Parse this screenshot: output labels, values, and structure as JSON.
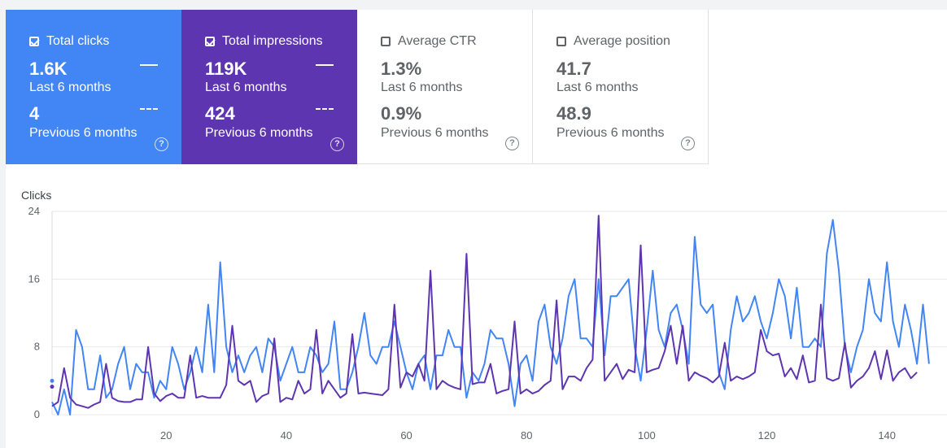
{
  "cards": [
    {
      "label": "Total clicks",
      "checked": true,
      "current": "1.6K",
      "current_period": "Last 6 months",
      "previous": "4",
      "previous_period": "Previous 6 months",
      "color": "#4285f4"
    },
    {
      "label": "Total impressions",
      "checked": true,
      "current": "119K",
      "current_period": "Last 6 months",
      "previous": "424",
      "previous_period": "Previous 6 months",
      "color": "#5e35b1"
    },
    {
      "label": "Average CTR",
      "checked": false,
      "current": "1.3%",
      "current_period": "Last 6 months",
      "previous": "0.9%",
      "previous_period": "Previous 6 months"
    },
    {
      "label": "Average position",
      "checked": false,
      "current": "41.7",
      "current_period": "Last 6 months",
      "previous": "48.9",
      "previous_period": "Previous 6 months"
    }
  ],
  "help_glyph": "?",
  "chart_data": {
    "type": "line",
    "ylabel": "Clicks",
    "ylim": [
      0,
      24
    ],
    "yticks": [
      "0",
      "8",
      "16",
      "24"
    ],
    "xticks": [
      20,
      40,
      60,
      80,
      100,
      120,
      140
    ],
    "xlim": [
      1,
      150
    ],
    "grid": true,
    "series": [
      {
        "color": "#4285f4",
        "values": [
          1.5,
          0,
          3,
          0,
          10,
          8,
          3,
          3,
          7,
          2,
          3,
          6,
          8,
          3,
          6,
          5,
          5,
          2,
          4,
          3,
          8,
          6,
          3,
          5,
          8,
          5,
          13,
          5,
          18,
          8,
          5,
          7,
          5,
          7,
          8,
          5,
          9,
          8,
          4,
          6,
          8,
          5,
          5,
          8,
          7,
          5,
          6,
          11,
          3,
          3,
          5,
          8,
          12,
          7,
          6,
          8,
          8,
          11,
          8,
          5,
          3,
          6,
          7,
          3,
          7,
          7,
          10,
          8,
          8,
          2,
          5,
          4,
          6,
          10,
          9,
          9,
          6,
          1,
          6,
          7,
          4,
          11,
          13,
          8,
          6,
          9,
          14,
          16,
          9,
          9,
          8,
          16,
          7,
          14,
          14,
          15,
          16,
          8,
          4,
          10,
          17,
          10,
          8,
          12,
          13,
          10,
          6,
          21,
          13,
          12,
          13,
          5,
          3,
          10,
          14,
          11,
          12,
          14,
          11,
          9,
          12,
          16,
          14,
          9,
          15,
          8,
          8,
          9,
          8,
          19,
          23,
          17,
          8,
          5,
          8,
          10,
          16,
          12,
          11,
          18,
          11,
          8,
          13,
          10,
          6,
          13,
          6
        ]
      },
      {
        "color": "#5e35b1",
        "values": [
          1,
          1.5,
          5.5,
          2,
          1.2,
          1,
          0.8,
          1.2,
          1.5,
          6,
          2,
          1.6,
          1.5,
          1.5,
          1.8,
          1.8,
          8,
          2.5,
          1.6,
          2.2,
          2.5,
          2,
          2,
          7,
          2,
          2.2,
          2,
          2,
          2,
          3.5,
          10.5,
          4,
          3.5,
          4,
          1.5,
          2.2,
          2.5,
          9,
          1.5,
          2,
          1.8,
          4,
          2.5,
          3,
          10,
          2.5,
          4,
          3,
          2,
          2.5,
          9.5,
          2.5,
          2.6,
          2.5,
          2.4,
          2.3,
          3,
          13,
          3.2,
          5,
          4.5,
          6,
          4,
          17,
          3,
          4,
          3.5,
          3.2,
          3,
          19,
          3.6,
          3.8,
          3.8,
          6,
          2.5,
          2.8,
          3,
          11,
          2.5,
          3,
          2.5,
          2.8,
          3.5,
          4,
          13.5,
          3,
          4.5,
          4.5,
          4,
          5.5,
          6.5,
          23.5,
          4,
          5,
          6,
          4.2,
          5.3,
          5,
          20,
          5,
          5.3,
          5.5,
          7.5,
          10.5,
          6,
          10.5,
          4,
          5,
          4.6,
          4.3,
          3.8,
          4.5,
          8.5,
          4,
          4.5,
          4.2,
          4.5,
          5,
          10,
          7.5,
          7,
          7.2,
          4.5,
          5.5,
          4.2,
          7,
          3.8,
          4,
          13,
          4.3,
          4,
          4.3,
          8.5,
          3.2,
          4,
          4.5,
          5.5,
          7.5,
          4.2,
          7.6,
          4,
          5,
          5.5,
          4.3,
          5
        ]
      }
    ]
  }
}
